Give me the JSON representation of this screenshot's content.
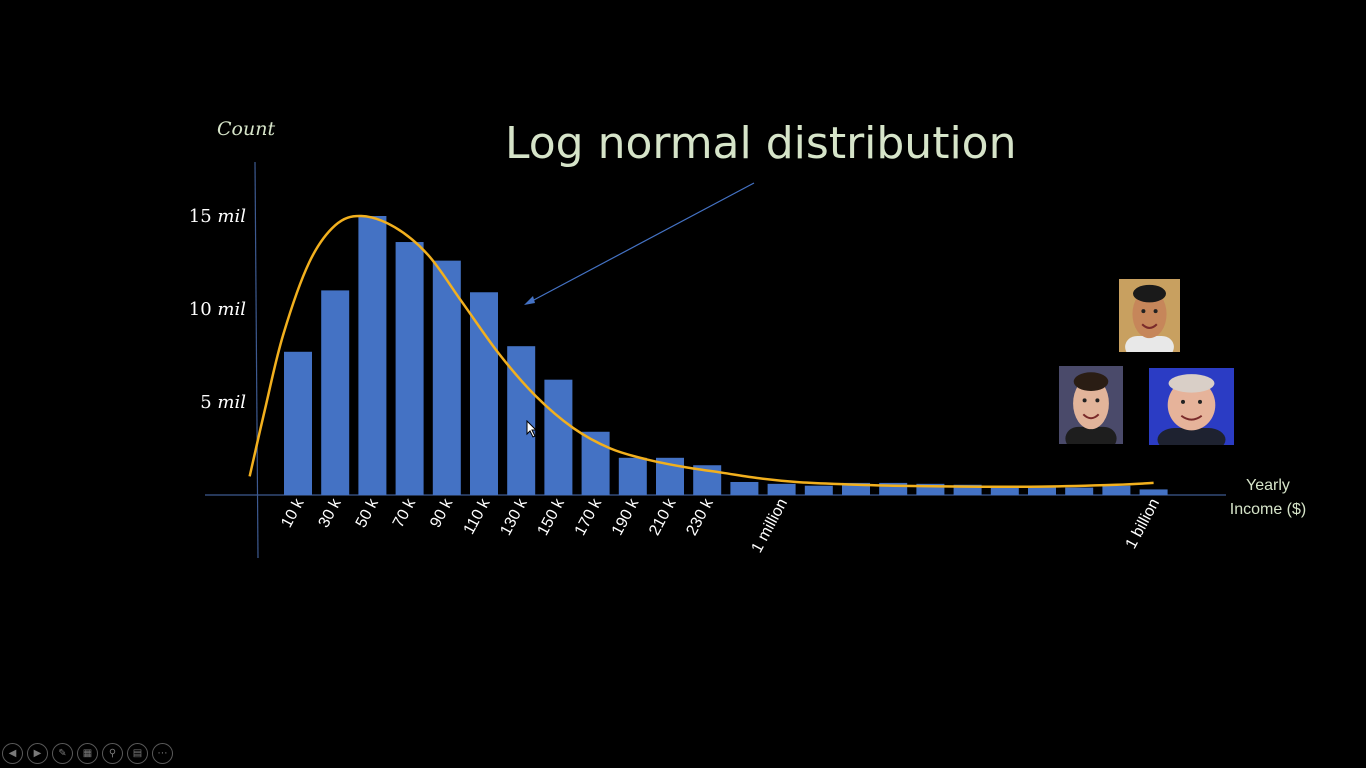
{
  "slide": {
    "title": "Log normal distribution",
    "y_axis_title": "Count",
    "x_axis_title": [
      "Yearly",
      "Income ($)"
    ]
  },
  "colors": {
    "background": "#000000",
    "bars": "#4472c4",
    "curve": "#f2b01e",
    "text": "#d6e4c9",
    "axis": "#3d5a91",
    "pointer_arrow": "#4472c4"
  },
  "chart_data": {
    "type": "bar",
    "title": "Log normal distribution",
    "ylabel": "Count",
    "xlabel": "Yearly Income ($)",
    "ylim": [
      0,
      15
    ],
    "y_unit": "mil",
    "y_ticks": [
      {
        "value": 5,
        "label": "5 mil"
      },
      {
        "value": 10,
        "label": "10 mil"
      },
      {
        "value": 15,
        "label": "15 mil"
      }
    ],
    "categories": [
      "10 k",
      "30 k",
      "50 k",
      "70 k",
      "90 k",
      "110 k",
      "130 k",
      "150 k",
      "170 k",
      "190 k",
      "210 k",
      "230 k",
      "",
      "1 million",
      "",
      "",
      "",
      "",
      "",
      "",
      "",
      "",
      "",
      "1 billion"
    ],
    "values": [
      7.7,
      11.0,
      15.0,
      13.6,
      12.6,
      10.9,
      8.0,
      6.2,
      3.4,
      2.0,
      2.0,
      1.6,
      0.7,
      0.6,
      0.5,
      0.65,
      0.65,
      0.6,
      0.55,
      0.5,
      0.45,
      0.4,
      0.5,
      0.3
    ],
    "fitted_curve": {
      "label": "Log normal distribution",
      "points": [
        {
          "x": -1.3,
          "y": 1.0
        },
        {
          "x": -0.9,
          "y": 4.5
        },
        {
          "x": -0.4,
          "y": 8.6
        },
        {
          "x": 0.3,
          "y": 12.5
        },
        {
          "x": 1.0,
          "y": 14.5
        },
        {
          "x": 1.7,
          "y": 15.0
        },
        {
          "x": 2.6,
          "y": 14.4
        },
        {
          "x": 3.5,
          "y": 12.9
        },
        {
          "x": 4.4,
          "y": 10.4
        },
        {
          "x": 5.4,
          "y": 7.6
        },
        {
          "x": 6.4,
          "y": 5.3
        },
        {
          "x": 7.4,
          "y": 3.6
        },
        {
          "x": 8.4,
          "y": 2.5
        },
        {
          "x": 9.4,
          "y": 1.9
        },
        {
          "x": 10.4,
          "y": 1.5
        },
        {
          "x": 11.4,
          "y": 1.2
        },
        {
          "x": 12.4,
          "y": 0.9
        },
        {
          "x": 13.4,
          "y": 0.7
        },
        {
          "x": 14.4,
          "y": 0.6
        },
        {
          "x": 16.0,
          "y": 0.5
        },
        {
          "x": 18.0,
          "y": 0.45
        },
        {
          "x": 20.0,
          "y": 0.45
        },
        {
          "x": 22.0,
          "y": 0.55
        },
        {
          "x": 23.0,
          "y": 0.65
        }
      ]
    },
    "grid": false,
    "legend": "none"
  },
  "pictures": [
    {
      "name": "person-photo-top",
      "skin": "#c6865a",
      "hair": "#1a1a1a",
      "bg": "#c8a060",
      "shirt": "#e8e8e8"
    },
    {
      "name": "person-photo-left",
      "skin": "#e2b49a",
      "hair": "#2a1d14",
      "bg": "#4a4a6a",
      "shirt": "#1e1e1e"
    },
    {
      "name": "person-photo-right",
      "skin": "#e6b39a",
      "hair": "#d9cfc7",
      "bg": "#2b3cc4",
      "shirt": "#1e2230"
    }
  ],
  "toolbar": {
    "buttons": [
      {
        "name": "previous-button",
        "icon": "◀"
      },
      {
        "name": "next-button",
        "icon": "▶"
      },
      {
        "name": "pen-button",
        "icon": "✎"
      },
      {
        "name": "slides-button",
        "icon": "▦"
      },
      {
        "name": "zoom-button",
        "icon": "⚲"
      },
      {
        "name": "subtitles-button",
        "icon": "▤"
      },
      {
        "name": "more-button",
        "icon": "⋯"
      }
    ]
  }
}
